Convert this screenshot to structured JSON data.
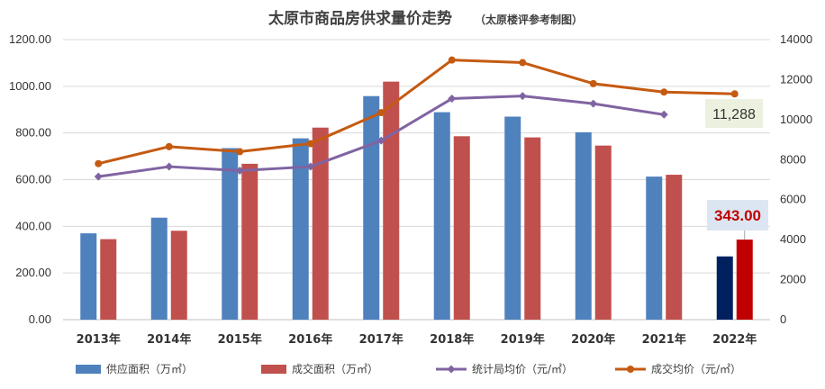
{
  "chart_data": {
    "type": "bar+line",
    "title": "太原市商品房供求量价走势",
    "subtitle": "（太原楼评参考制图）",
    "categories": [
      "2013年",
      "2014年",
      "2015年",
      "2016年",
      "2017年",
      "2018年",
      "2019年",
      "2020年",
      "2021年",
      "2022年"
    ],
    "y_left": {
      "min": 0,
      "max": 1200,
      "step": 200,
      "tick_labels": [
        "0.00",
        "200.00",
        "400.00",
        "600.00",
        "800.00",
        "1000.00",
        "1200.00"
      ]
    },
    "y_right": {
      "min": 0,
      "max": 14000,
      "step": 2000,
      "tick_labels": [
        "0",
        "2000",
        "4000",
        "6000",
        "8000",
        "10000",
        "12000",
        "14000"
      ]
    },
    "grid": true,
    "legend_position": "bottom",
    "series": [
      {
        "name": "供应面积（万㎡）",
        "type": "bar",
        "axis": "left",
        "color": "#4f81bd",
        "values": [
          370,
          437,
          735,
          777,
          958,
          889,
          870,
          803,
          613,
          271
        ],
        "highlight_color_last": "#002060"
      },
      {
        "name": "成交面积（万㎡）",
        "type": "bar",
        "axis": "left",
        "color": "#c0504d",
        "values": [
          345,
          381,
          668,
          823,
          1020,
          786,
          781,
          746,
          621,
          343
        ],
        "highlight_color_last": "#c00000"
      },
      {
        "name": "统计局均价（元/㎡）",
        "type": "line",
        "axis": "right",
        "color": "#8064a2",
        "marker": "diamond",
        "values": [
          7150,
          7650,
          7450,
          7650,
          8950,
          11050,
          11180,
          10800,
          10250,
          null
        ]
      },
      {
        "name": "成交均价（元/㎡）",
        "type": "line",
        "axis": "right",
        "color": "#c55a11",
        "marker": "circle",
        "values": [
          7800,
          8650,
          8400,
          8800,
          10350,
          12980,
          12850,
          11800,
          11380,
          11288
        ]
      }
    ],
    "annotations": [
      {
        "text": "11,288",
        "series": "成交均价（元/㎡）",
        "category": "2022年"
      },
      {
        "text": "343.00",
        "series": "成交面积（万㎡）",
        "category": "2022年"
      }
    ]
  }
}
